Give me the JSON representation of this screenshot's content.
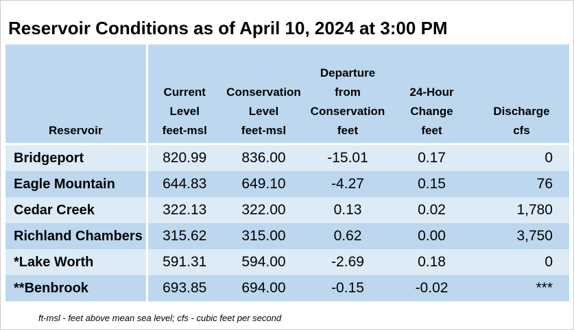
{
  "title": "Reservoir Conditions as of April 10, 2024 at 3:00 PM",
  "columns": [
    {
      "lines": [
        "Reservoir"
      ]
    },
    {
      "lines": [
        "Current",
        "Level",
        "feet-msl"
      ]
    },
    {
      "lines": [
        "Conservation",
        "Level",
        "feet-msl"
      ]
    },
    {
      "lines": [
        "Departure",
        "from",
        "Conservation",
        "feet"
      ]
    },
    {
      "lines": [
        "24-Hour",
        "Change",
        "feet"
      ]
    },
    {
      "lines": [
        "Discharge",
        "cfs"
      ]
    }
  ],
  "rows": [
    {
      "reservoir": "Bridgeport",
      "current": "820.99",
      "conservation": "836.00",
      "departure": "-15.01",
      "change": "0.17",
      "discharge": "0"
    },
    {
      "reservoir": "Eagle Mountain",
      "current": "644.83",
      "conservation": "649.10",
      "departure": "-4.27",
      "change": "0.15",
      "discharge": "76"
    },
    {
      "reservoir": "Cedar Creek",
      "current": "322.13",
      "conservation": "322.00",
      "departure": "0.13",
      "change": "0.02",
      "discharge": "1,780"
    },
    {
      "reservoir": "Richland Chambers",
      "current": "315.62",
      "conservation": "315.00",
      "departure": "0.62",
      "change": "0.00",
      "discharge": "3,750"
    },
    {
      "reservoir": "*Lake Worth",
      "current": "591.31",
      "conservation": "594.00",
      "departure": "-2.69",
      "change": "0.18",
      "discharge": "0"
    },
    {
      "reservoir": "**Benbrook",
      "current": "693.85",
      "conservation": "694.00",
      "departure": "-0.15",
      "change": "-0.02",
      "discharge": "***"
    }
  ],
  "footnote": "ft-msl - feet above mean sea level; cfs - cubic feet per second",
  "colors": {
    "header_bg": "#bdd7ee",
    "row_light": "#ddebf7",
    "row_dark": "#bdd7ee"
  }
}
